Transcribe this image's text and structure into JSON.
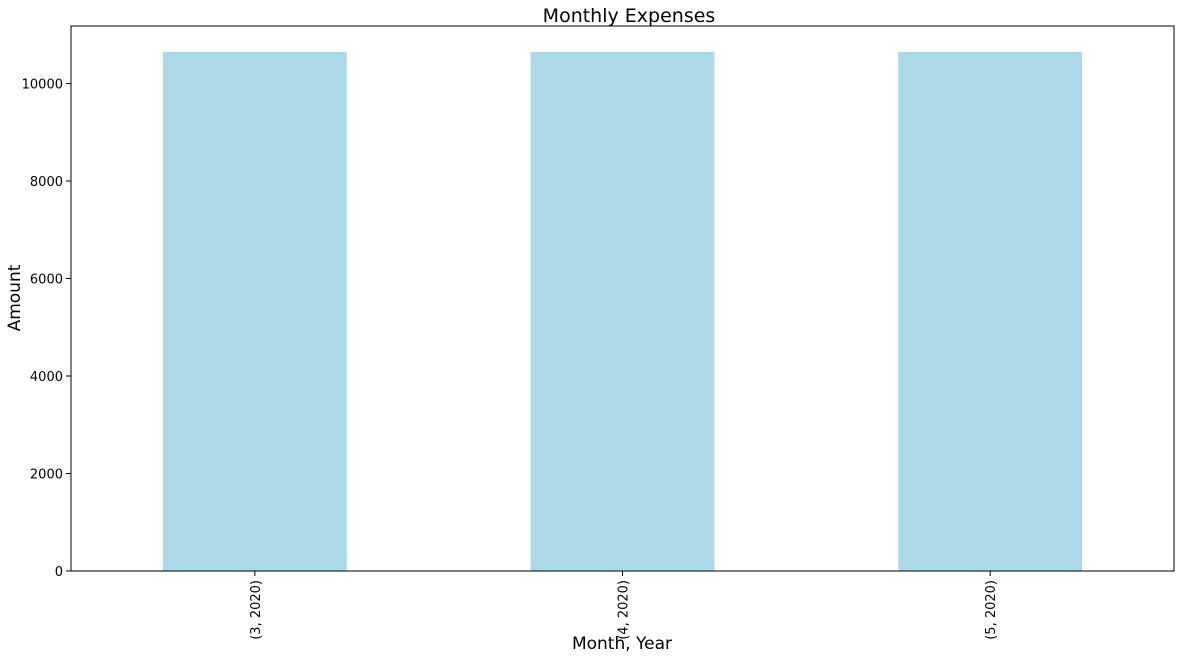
{
  "chart_data": {
    "type": "bar",
    "title": "Monthly Expenses",
    "xlabel": "Month, Year",
    "ylabel": "Amount",
    "categories": [
      "(3, 2020)",
      "(4, 2020)",
      "(5, 2020)"
    ],
    "values": [
      10650,
      10650,
      10650
    ],
    "ylim": [
      0,
      11180
    ],
    "yticks": [
      0,
      2000,
      4000,
      6000,
      8000,
      10000
    ],
    "bar_color": "#add8e6",
    "grid": false,
    "legend": "none"
  }
}
